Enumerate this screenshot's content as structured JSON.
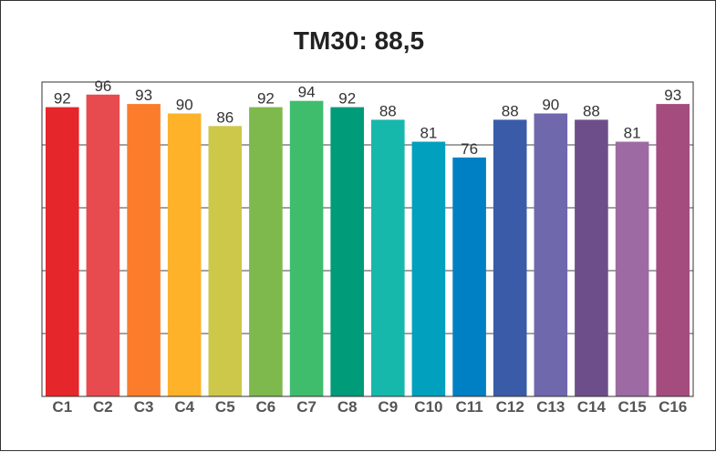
{
  "chart_data": {
    "type": "bar",
    "title": "TM30: 88,5",
    "xlabel": "",
    "ylabel": "",
    "categories": [
      "C1",
      "C2",
      "C3",
      "C4",
      "C5",
      "C6",
      "C7",
      "C8",
      "C9",
      "C10",
      "C11",
      "C12",
      "C13",
      "C14",
      "C15",
      "C16"
    ],
    "values": [
      92,
      96,
      93,
      90,
      86,
      92,
      94,
      92,
      88,
      81,
      76,
      88,
      90,
      88,
      81,
      93
    ],
    "colors": [
      "#e5262b",
      "#e84b4f",
      "#fb7d2c",
      "#fdb22a",
      "#cdc84a",
      "#7eb94e",
      "#3fbd6c",
      "#009b78",
      "#17b8ac",
      "#00a0be",
      "#0080c4",
      "#3a5ba7",
      "#6f68ad",
      "#6d4e8a",
      "#9d6aa4",
      "#a54c7e"
    ],
    "ylim": [
      0,
      100
    ],
    "grid": true,
    "legend": "none",
    "data_labels": true
  }
}
